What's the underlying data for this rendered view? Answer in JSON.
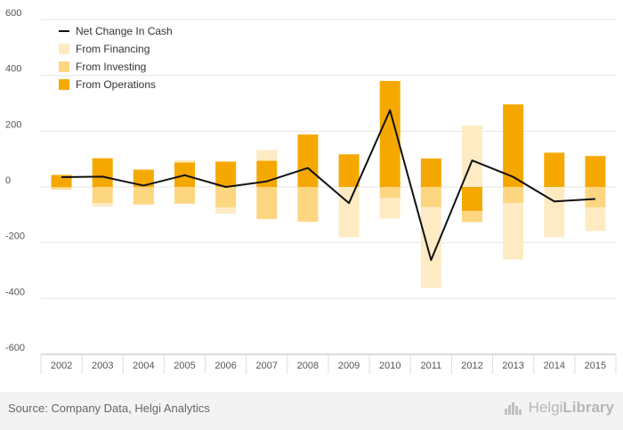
{
  "chart_data": {
    "type": "bar",
    "title": "",
    "xlabel": "",
    "ylabel": "",
    "ylim": [
      -600,
      600
    ],
    "yticks": [
      "600",
      "400",
      "200",
      "0",
      "-200",
      "-400",
      "-600"
    ],
    "categories": [
      "2002",
      "2003",
      "2004",
      "2005",
      "2006",
      "2007",
      "2008",
      "2009",
      "2010",
      "2011",
      "2012",
      "2013",
      "2014",
      "2015"
    ],
    "stacked": true,
    "series": [
      {
        "name": "From Operations",
        "kind": "bar",
        "color": "#f5a800",
        "values": [
          43,
          103,
          62,
          88,
          91,
          94,
          188,
          117,
          380,
          102,
          -86,
          296,
          123,
          111
        ]
      },
      {
        "name": "From Investing",
        "kind": "bar",
        "color": "#fcd681",
        "values": [
          -8,
          -58,
          -63,
          -60,
          -73,
          -115,
          -125,
          0,
          -40,
          -72,
          -40,
          -58,
          0,
          -73
        ]
      },
      {
        "name": "From Financing",
        "kind": "bar",
        "color": "#feebc4",
        "values": [
          -2,
          -12,
          0,
          8,
          -23,
          38,
          0,
          -180,
          -73,
          -290,
          220,
          -202,
          -180,
          -85
        ]
      },
      {
        "name": "Net Change In Cash",
        "kind": "line",
        "color": "#111111",
        "values": [
          35,
          37,
          5,
          42,
          0,
          20,
          68,
          -58,
          275,
          -262,
          95,
          36,
          -52,
          -43
        ]
      }
    ],
    "legend_order": [
      "Net Change In Cash",
      "From Financing",
      "From Investing",
      "From Operations"
    ],
    "legend_position": "top-left",
    "grid": "horizontal"
  },
  "footer": {
    "source": "Source: Company Data, Helgi Analytics",
    "logo_light": "Helgi",
    "logo_bold": "Library"
  },
  "colors": {
    "operations": "#f5a800",
    "investing": "#fcd681",
    "financing": "#feebc4",
    "net": "#111111",
    "footer_bg": "#f3f3f3"
  }
}
